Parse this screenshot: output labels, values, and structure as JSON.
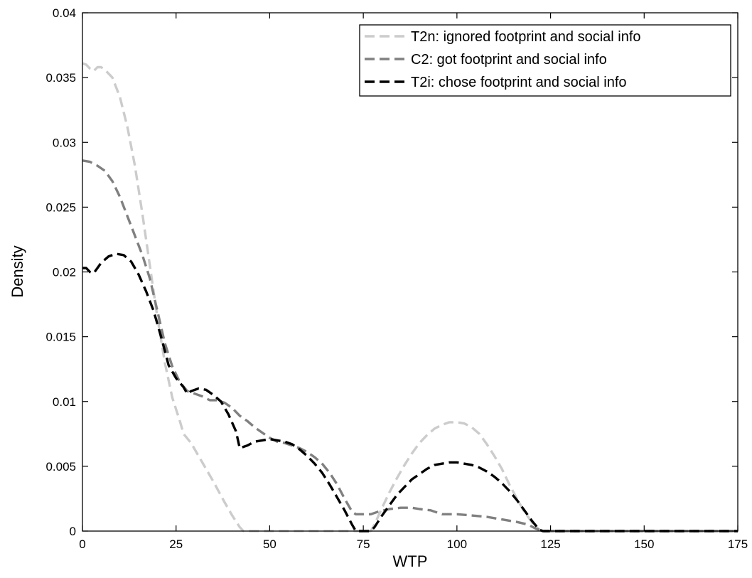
{
  "chart_data": {
    "type": "line",
    "title": "",
    "xlabel": "WTP",
    "ylabel": "Density",
    "xlim": [
      0,
      175
    ],
    "ylim": [
      0,
      0.04
    ],
    "xticks": [
      0,
      25,
      50,
      75,
      100,
      125,
      150,
      175
    ],
    "xtick_labels": [
      "0",
      "25",
      "50",
      "75",
      "100",
      "125",
      "150",
      "175"
    ],
    "yticks": [
      0,
      0.005,
      0.01,
      0.015,
      0.02,
      0.025,
      0.03,
      0.035,
      0.04
    ],
    "ytick_labels": [
      "0",
      "0.005",
      "0.01",
      "0.015",
      "0.02",
      "0.025",
      "0.03",
      "0.035",
      "0.04"
    ],
    "grid": false,
    "legend_position": "top-right",
    "series": [
      {
        "name": "T2n: ignored footprint and social info",
        "color": "#cccccc",
        "line_style": "dashed",
        "points": [
          [
            0,
            0.0361
          ],
          [
            1,
            0.036
          ],
          [
            2,
            0.0357
          ],
          [
            3,
            0.0355
          ],
          [
            4,
            0.0358
          ],
          [
            5,
            0.0358
          ],
          [
            6,
            0.0356
          ],
          [
            8,
            0.035
          ],
          [
            10,
            0.0335
          ],
          [
            12,
            0.0312
          ],
          [
            14,
            0.0282
          ],
          [
            16,
            0.0245
          ],
          [
            18,
            0.0205
          ],
          [
            20,
            0.0165
          ],
          [
            22,
            0.013
          ],
          [
            24,
            0.0103
          ],
          [
            26,
            0.0085
          ],
          [
            27,
            0.0075
          ],
          [
            29,
            0.0068
          ],
          [
            32,
            0.0053
          ],
          [
            35,
            0.0038
          ],
          [
            38,
            0.0022
          ],
          [
            40,
            0.0012
          ],
          [
            42,
            0.0003
          ],
          [
            43,
            0
          ],
          [
            50,
            0
          ],
          [
            60,
            0
          ],
          [
            70,
            0
          ],
          [
            76,
            0
          ],
          [
            77,
            0.0
          ],
          [
            78,
            0.0005
          ],
          [
            80,
            0.0018
          ],
          [
            82,
            0.003
          ],
          [
            84,
            0.0041
          ],
          [
            86,
            0.0051
          ],
          [
            88,
            0.006
          ],
          [
            90,
            0.0068
          ],
          [
            92,
            0.0074
          ],
          [
            94,
            0.0079
          ],
          [
            96,
            0.0082
          ],
          [
            98,
            0.0084
          ],
          [
            100,
            0.0084
          ],
          [
            102,
            0.0083
          ],
          [
            104,
            0.008
          ],
          [
            106,
            0.0075
          ],
          [
            108,
            0.0067
          ],
          [
            110,
            0.0058
          ],
          [
            112,
            0.0048
          ],
          [
            114,
            0.0036
          ],
          [
            116,
            0.0025
          ],
          [
            118,
            0.0015
          ],
          [
            120,
            0.0007
          ],
          [
            122,
            0.0001
          ],
          [
            123,
            0
          ],
          [
            130,
            0
          ],
          [
            150,
            0
          ],
          [
            175,
            0
          ]
        ]
      },
      {
        "name": "C2: got footprint and social info",
        "color": "#808080",
        "line_style": "dashed",
        "points": [
          [
            0,
            0.0286
          ],
          [
            2,
            0.0285
          ],
          [
            4,
            0.0282
          ],
          [
            6,
            0.0278
          ],
          [
            8,
            0.027
          ],
          [
            10,
            0.0258
          ],
          [
            12,
            0.0243
          ],
          [
            14,
            0.0228
          ],
          [
            16,
            0.0213
          ],
          [
            18,
            0.0195
          ],
          [
            20,
            0.017
          ],
          [
            22,
            0.0145
          ],
          [
            24,
            0.0127
          ],
          [
            26,
            0.0115
          ],
          [
            28,
            0.0108
          ],
          [
            30,
            0.0106
          ],
          [
            32,
            0.0104
          ],
          [
            34,
            0.0101
          ],
          [
            36,
            0.0101
          ],
          [
            38,
            0.0099
          ],
          [
            40,
            0.0095
          ],
          [
            42,
            0.0089
          ],
          [
            44,
            0.0085
          ],
          [
            46,
            0.008
          ],
          [
            48,
            0.0076
          ],
          [
            50,
            0.0072
          ],
          [
            52,
            0.0069
          ],
          [
            54,
            0.0068
          ],
          [
            56,
            0.0066
          ],
          [
            58,
            0.0064
          ],
          [
            60,
            0.0061
          ],
          [
            62,
            0.0057
          ],
          [
            64,
            0.0052
          ],
          [
            66,
            0.0045
          ],
          [
            68,
            0.0036
          ],
          [
            70,
            0.0025
          ],
          [
            72,
            0.0015
          ],
          [
            73,
            0.0013
          ],
          [
            75,
            0.0013
          ],
          [
            77,
            0.0013
          ],
          [
            79,
            0.0015
          ],
          [
            82,
            0.0017
          ],
          [
            85,
            0.0018
          ],
          [
            88,
            0.0018
          ],
          [
            90,
            0.0017
          ],
          [
            93,
            0.0016
          ],
          [
            96,
            0.0013
          ],
          [
            100,
            0.0013
          ],
          [
            104,
            0.0012
          ],
          [
            108,
            0.0011
          ],
          [
            112,
            0.0009
          ],
          [
            116,
            0.0007
          ],
          [
            119,
            0.0005
          ],
          [
            121,
            0.0002
          ],
          [
            123,
            0
          ],
          [
            130,
            0
          ],
          [
            150,
            0
          ],
          [
            175,
            0
          ]
        ]
      },
      {
        "name": "T2i: chose footprint and social info",
        "color": "#000000",
        "line_style": "dashed",
        "points": [
          [
            0,
            0.0203
          ],
          [
            1,
            0.0203
          ],
          [
            2,
            0.02
          ],
          [
            3,
            0.0199
          ],
          [
            4,
            0.0203
          ],
          [
            5,
            0.0207
          ],
          [
            7,
            0.0212
          ],
          [
            9,
            0.0214
          ],
          [
            11,
            0.0213
          ],
          [
            13,
            0.0208
          ],
          [
            15,
            0.0198
          ],
          [
            17,
            0.0185
          ],
          [
            19,
            0.017
          ],
          [
            21,
            0.015
          ],
          [
            23,
            0.0128
          ],
          [
            25,
            0.0118
          ],
          [
            27,
            0.0111
          ],
          [
            28,
            0.0106
          ],
          [
            29,
            0.0108
          ],
          [
            31,
            0.011
          ],
          [
            33,
            0.0109
          ],
          [
            35,
            0.0105
          ],
          [
            37,
            0.01
          ],
          [
            39,
            0.009
          ],
          [
            41,
            0.0077
          ],
          [
            42,
            0.0064
          ],
          [
            44,
            0.0066
          ],
          [
            46,
            0.0069
          ],
          [
            48,
            0.007
          ],
          [
            50,
            0.0071
          ],
          [
            52,
            0.007
          ],
          [
            54,
            0.0069
          ],
          [
            56,
            0.0067
          ],
          [
            58,
            0.0063
          ],
          [
            60,
            0.0058
          ],
          [
            62,
            0.0052
          ],
          [
            64,
            0.0045
          ],
          [
            66,
            0.0036
          ],
          [
            68,
            0.0026
          ],
          [
            70,
            0.0016
          ],
          [
            72,
            0.0005
          ],
          [
            73,
            0
          ],
          [
            75,
            0
          ],
          [
            77,
            0
          ],
          [
            78,
            0.0003
          ],
          [
            80,
            0.0012
          ],
          [
            82,
            0.002
          ],
          [
            84,
            0.0028
          ],
          [
            86,
            0.0034
          ],
          [
            88,
            0.004
          ],
          [
            90,
            0.0044
          ],
          [
            92,
            0.0048
          ],
          [
            94,
            0.0051
          ],
          [
            96,
            0.0052
          ],
          [
            98,
            0.0053
          ],
          [
            100,
            0.0053
          ],
          [
            102,
            0.0052
          ],
          [
            104,
            0.0051
          ],
          [
            106,
            0.0049
          ],
          [
            108,
            0.0046
          ],
          [
            110,
            0.0042
          ],
          [
            112,
            0.0037
          ],
          [
            114,
            0.0031
          ],
          [
            116,
            0.0024
          ],
          [
            118,
            0.0016
          ],
          [
            120,
            0.0008
          ],
          [
            122,
            0.0001
          ],
          [
            123,
            0
          ],
          [
            130,
            0
          ],
          [
            150,
            0
          ],
          [
            175,
            0
          ]
        ]
      }
    ]
  }
}
